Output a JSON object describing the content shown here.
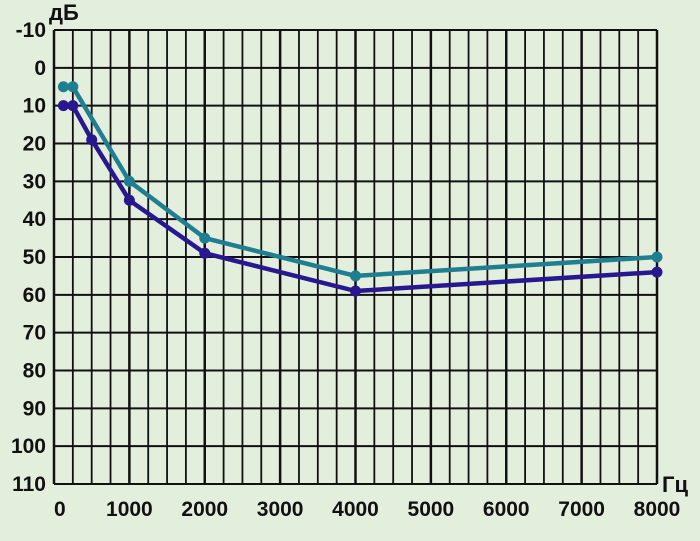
{
  "chart_data": {
    "type": "line",
    "ylabel": "дБ",
    "xlabel": "Гц",
    "y_axis_inverted": true,
    "ylim": [
      -10,
      110
    ],
    "xlim": [
      0,
      8000
    ],
    "y_ticks": [
      "-10",
      "0",
      "10",
      "20",
      "30",
      "40",
      "50",
      "60",
      "70",
      "80",
      "90",
      "100",
      "110"
    ],
    "x_ticks": [
      "0",
      "1000",
      "2000",
      "3000",
      "4000",
      "5000",
      "6000",
      "7000",
      "8000"
    ],
    "grid": true,
    "series": [
      {
        "color": "#1f7f91",
        "points": [
          [
            125,
            5
          ],
          [
            250,
            5
          ],
          [
            1000,
            30
          ],
          [
            2000,
            45
          ],
          [
            4000,
            55
          ],
          [
            8000,
            50
          ]
        ]
      },
      {
        "color": "#27188f",
        "points": [
          [
            125,
            10
          ],
          [
            250,
            10
          ],
          [
            500,
            19
          ],
          [
            1000,
            35
          ],
          [
            2000,
            49
          ],
          [
            4000,
            59
          ],
          [
            8000,
            54
          ]
        ]
      }
    ]
  }
}
